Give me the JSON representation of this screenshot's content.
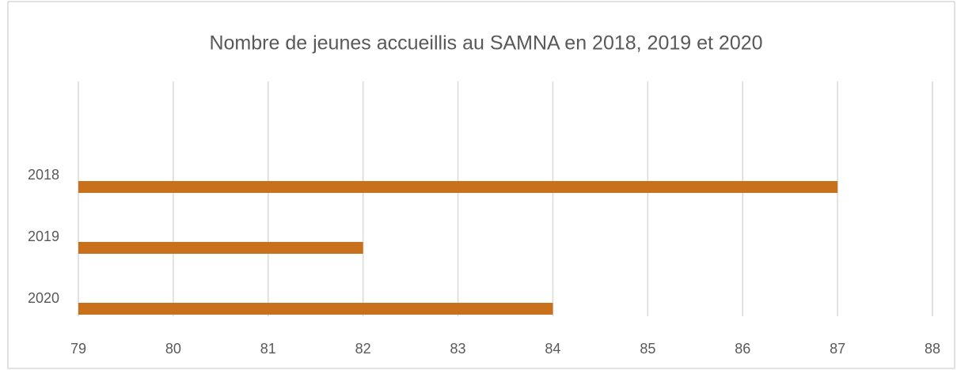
{
  "chart_data": {
    "type": "bar",
    "orientation": "horizontal",
    "title": "Nombre de jeunes accueillis au SAMNA en 2018, 2019 et 2020",
    "categories": [
      "2018",
      "2019",
      "2020"
    ],
    "values": [
      87,
      82,
      84
    ],
    "color": "#c8701b",
    "xlim": [
      79,
      88
    ],
    "xticks": [
      79,
      80,
      81,
      82,
      83,
      84,
      85,
      86,
      87,
      88
    ],
    "grid": true
  }
}
